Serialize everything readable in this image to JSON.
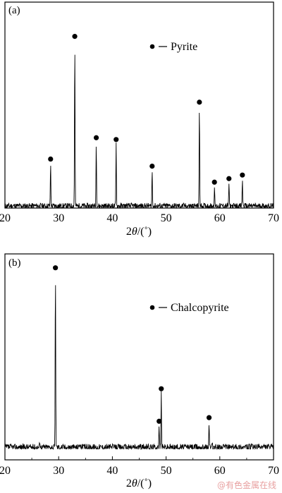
{
  "chart_data": [
    {
      "type": "line",
      "panel_label": "(a)",
      "xlabel_main": "2",
      "xlabel_italic": "θ",
      "xlabel_unit": "/(˚)",
      "xlim": [
        20,
        70
      ],
      "x_ticks": [
        20,
        30,
        40,
        50,
        60,
        70
      ],
      "ylim": [
        0,
        100
      ],
      "legend": {
        "label": "Pyrite",
        "position": "top-right"
      },
      "peaks": [
        {
          "x": 28.5,
          "y": 24
        },
        {
          "x": 33.0,
          "y": 93
        },
        {
          "x": 37.0,
          "y": 36
        },
        {
          "x": 40.7,
          "y": 35
        },
        {
          "x": 47.4,
          "y": 20
        },
        {
          "x": 56.2,
          "y": 56
        },
        {
          "x": 59.0,
          "y": 11
        },
        {
          "x": 61.7,
          "y": 13
        },
        {
          "x": 64.2,
          "y": 15
        }
      ]
    },
    {
      "type": "line",
      "panel_label": "(b)",
      "xlabel_main": "2",
      "xlabel_italic": "θ",
      "xlabel_unit": "/(˚)",
      "xlim": [
        20,
        70
      ],
      "x_ticks": [
        20,
        30,
        40,
        50,
        60,
        70
      ],
      "ylim": [
        0,
        100
      ],
      "legend": {
        "label": "Chalcopyrite",
        "position": "top-right"
      },
      "peaks": [
        {
          "x": 29.4,
          "y": 97
        },
        {
          "x": 48.7,
          "y": 12
        },
        {
          "x": 49.1,
          "y": 30
        },
        {
          "x": 58.0,
          "y": 14
        }
      ],
      "minor_peaks": [
        {
          "x": 26.5,
          "y": 4
        },
        {
          "x": 33.9,
          "y": 3
        },
        {
          "x": 58.6,
          "y": 2
        }
      ]
    }
  ],
  "watermark": "@有色金属在线"
}
